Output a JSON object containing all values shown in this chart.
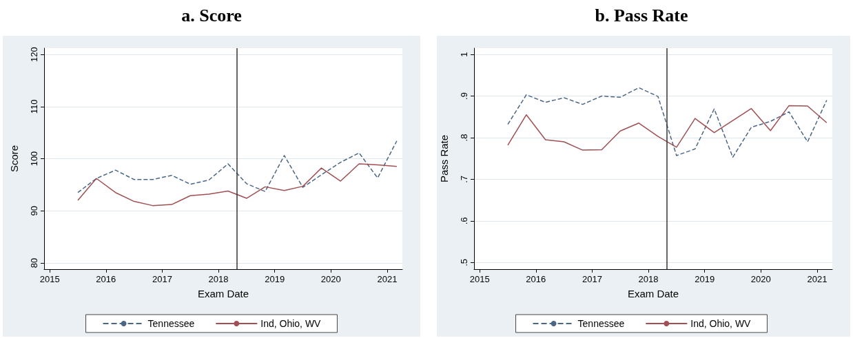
{
  "chart_data": [
    {
      "type": "line",
      "title": "a. Score",
      "xlabel": "Exam Date",
      "ylabel": "Score",
      "x": [
        2015.5,
        2015.83,
        2016.17,
        2016.5,
        2016.83,
        2017.17,
        2017.5,
        2017.83,
        2018.17,
        2018.5,
        2018.83,
        2019.17,
        2019.5,
        2019.83,
        2020.17,
        2020.5,
        2020.83,
        2021.17
      ],
      "series": [
        {
          "name": "Tennessee",
          "color": "#4a6685",
          "line_style": "dashed",
          "values": [
            93.5,
            96.2,
            97.8,
            96.0,
            96.0,
            96.8,
            95.1,
            95.9,
            99.0,
            95.2,
            93.7,
            100.6,
            94.5,
            96.9,
            99.3,
            101.1,
            96.3,
            103.4
          ]
        },
        {
          "name": "Ind, Ohio, WV",
          "color": "#a04f52",
          "line_style": "solid",
          "values": [
            92.0,
            96.2,
            93.5,
            91.8,
            91.0,
            91.2,
            92.9,
            93.2,
            93.8,
            92.4,
            94.6,
            93.9,
            94.7,
            98.2,
            95.7,
            99.0,
            98.8,
            98.5
          ]
        }
      ],
      "xlim": [
        2014.9,
        2021.27
      ],
      "xticks": [
        2015,
        2016,
        2017,
        2018,
        2019,
        2020,
        2021
      ],
      "ylim": [
        78.8,
        121.2
      ],
      "yticks": [
        80,
        90,
        100,
        110,
        120
      ],
      "ref_lines": [
        {
          "axis": "x",
          "value": 2018.33,
          "color": "#333333"
        }
      ],
      "grid": "y",
      "legend": "bottom",
      "marker": "none"
    },
    {
      "type": "line",
      "title": "b. Pass Rate",
      "xlabel": "Exam Date",
      "ylabel": "Pass Rate",
      "x": [
        2015.5,
        2015.83,
        2016.17,
        2016.5,
        2016.83,
        2017.17,
        2017.5,
        2017.83,
        2018.17,
        2018.5,
        2018.83,
        2019.17,
        2019.5,
        2019.83,
        2020.17,
        2020.5,
        2020.83,
        2021.17
      ],
      "series": [
        {
          "name": "Tennessee",
          "color": "#4a6685",
          "line_style": "dashed",
          "values": [
            0.832,
            0.903,
            0.885,
            0.896,
            0.88,
            0.9,
            0.897,
            0.92,
            0.899,
            0.757,
            0.773,
            0.869,
            0.753,
            0.825,
            0.839,
            0.862,
            0.79,
            0.89
          ]
        },
        {
          "name": "Ind, Ohio, WV",
          "color": "#a04f52",
          "line_style": "solid",
          "values": [
            0.782,
            0.855,
            0.795,
            0.79,
            0.77,
            0.771,
            0.816,
            0.835,
            0.803,
            0.777,
            0.846,
            0.812,
            0.841,
            0.87,
            0.817,
            0.877,
            0.876,
            0.836
          ]
        }
      ],
      "xlim": [
        2014.9,
        2021.27
      ],
      "xticks": [
        2015,
        2016,
        2017,
        2018,
        2019,
        2020,
        2021
      ],
      "ylim": [
        0.484,
        1.015
      ],
      "yticks": [
        {
          "value": 0.5,
          "label": ".5"
        },
        {
          "value": 0.6,
          "label": ".6"
        },
        {
          "value": 0.7,
          "label": ".7"
        },
        {
          "value": 0.8,
          "label": ".8"
        },
        {
          "value": 0.9,
          "label": ".9"
        },
        {
          "value": 1,
          "label": "1"
        }
      ],
      "ref_lines": [
        {
          "axis": "x",
          "value": 2018.33,
          "color": "#333333"
        }
      ],
      "grid": "y",
      "legend": "bottom",
      "marker": "none"
    }
  ]
}
